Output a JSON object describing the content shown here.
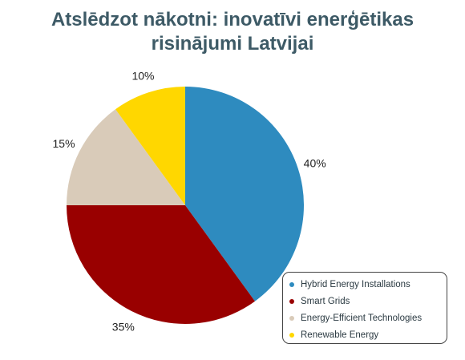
{
  "title_line1": "Atslēdzot nākotni: inovatīvi enerģētikas",
  "title_line2": "risinājumi Latvijai",
  "chart_data": {
    "type": "pie",
    "title": "Atslēdzot nākotni: inovatīvi enerģētikas risinājumi Latvijai",
    "labels": [
      "Hybrid Energy Installations",
      "Smart Grids",
      "Energy-Efficient Technologies",
      "Renewable Energy"
    ],
    "values": [
      40,
      35,
      15,
      10
    ],
    "value_labels": [
      "40%",
      "35%",
      "15%",
      "10%"
    ],
    "colors": [
      "#2e8bbf",
      "#990000",
      "#d9cbb9",
      "#ffd700"
    ],
    "legend_position": "bottom-right"
  },
  "legend": {
    "items": [
      {
        "label": "Hybrid Energy Installations",
        "color": "#2e8bbf"
      },
      {
        "label": "Smart Grids",
        "color": "#990000"
      },
      {
        "label": "Energy-Efficient Technologies",
        "color": "#d9cbb9"
      },
      {
        "label": "Renewable Energy",
        "color": "#ffd700"
      }
    ]
  }
}
